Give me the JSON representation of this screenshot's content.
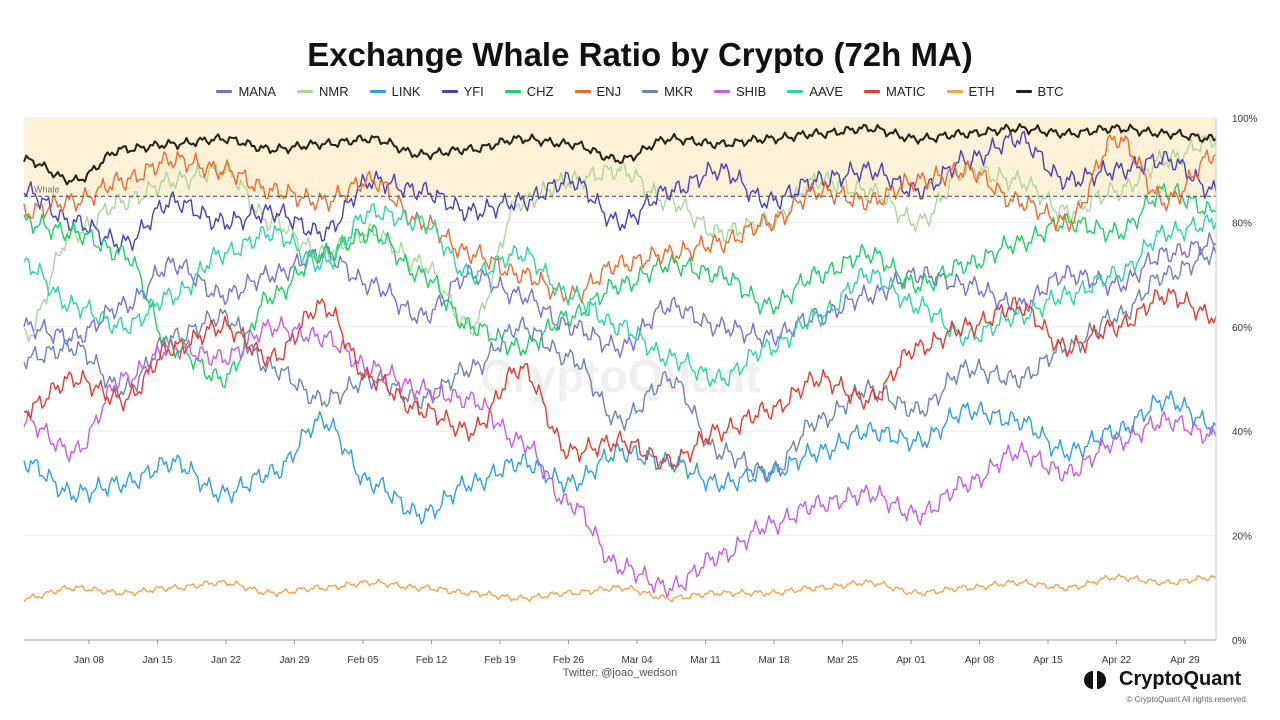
{
  "title": "Exchange Whale Ratio by Crypto (72h MA)",
  "watermark": "CryptoQuant",
  "threshold_label": "Whale",
  "credit": "Twitter: @joao_wedson",
  "brand": "CryptoQuant",
  "copyright": "© CryptoQuant All rights reserved.",
  "colors": {
    "band": "#fdf1d8",
    "grid": "#eeeeee",
    "threshold": "#555555"
  },
  "chart_data": {
    "type": "line",
    "title": "Exchange Whale Ratio by Crypto (72h MA)",
    "x_start": "Jan 02",
    "x_end": "May 03",
    "x_ticks": [
      "Jan 08",
      "Jan 15",
      "Jan 22",
      "Jan 29",
      "Feb 05",
      "Feb 12",
      "Feb 19",
      "Feb 26",
      "Mar 04",
      "Mar 11",
      "Mar 18",
      "Mar 25",
      "Apr 01",
      "Apr 08",
      "Apr 15",
      "Apr 22",
      "Apr 29"
    ],
    "y_ticks": [
      "0%",
      "20%",
      "40%",
      "60%",
      "80%",
      "100%"
    ],
    "ylim": [
      0,
      100
    ],
    "y_axis_position": "right",
    "highlight_band": [
      85,
      100
    ],
    "threshold": 85,
    "legend_position": "top-center",
    "grid": true,
    "series": [
      {
        "name": "MANA",
        "color": "#7b6fd4",
        "values": [
          60,
          58,
          64,
          72,
          66,
          70,
          74,
          68,
          62,
          70,
          66,
          60,
          56,
          64,
          60,
          58,
          62,
          66,
          70,
          68,
          64,
          70,
          68,
          74,
          76
        ]
      },
      {
        "name": "NMR",
        "color": "#a8d89a",
        "values": [
          58,
          78,
          84,
          88,
          90,
          80,
          74,
          78,
          72,
          60,
          84,
          88,
          90,
          84,
          78,
          80,
          88,
          86,
          80,
          90,
          88,
          82,
          86,
          92,
          96
        ]
      },
      {
        "name": "LINK",
        "color": "#2f9fe3",
        "values": [
          34,
          28,
          30,
          34,
          28,
          32,
          42,
          30,
          24,
          30,
          34,
          30,
          36,
          34,
          30,
          32,
          36,
          40,
          38,
          44,
          42,
          36,
          40,
          46,
          41
        ]
      },
      {
        "name": "YFI",
        "color": "#4a3fb8",
        "values": [
          86,
          80,
          76,
          84,
          80,
          82,
          78,
          88,
          86,
          82,
          84,
          88,
          80,
          86,
          90,
          84,
          88,
          90,
          86,
          92,
          96,
          88,
          90,
          92,
          86
        ]
      },
      {
        "name": "CHZ",
        "color": "#1ccf66",
        "values": [
          80,
          78,
          74,
          56,
          50,
          66,
          74,
          78,
          70,
          60,
          56,
          62,
          68,
          72,
          70,
          64,
          70,
          74,
          68,
          72,
          76,
          80,
          78,
          86,
          82
        ]
      },
      {
        "name": "ENJ",
        "color": "#f06a2a",
        "values": [
          82,
          84,
          88,
          92,
          90,
          86,
          84,
          88,
          80,
          74,
          70,
          66,
          72,
          74,
          76,
          80,
          86,
          84,
          88,
          90,
          84,
          80,
          96,
          84,
          93
        ]
      },
      {
        "name": "MKR",
        "color": "#6a85b5",
        "values": [
          54,
          56,
          48,
          58,
          62,
          52,
          46,
          50,
          46,
          52,
          60,
          54,
          42,
          50,
          36,
          32,
          42,
          48,
          44,
          52,
          50,
          56,
          62,
          70,
          74
        ]
      },
      {
        "name": "SHIB",
        "color": "#c55de8",
        "values": [
          42,
          36,
          50,
          56,
          54,
          60,
          58,
          52,
          48,
          46,
          38,
          26,
          14,
          10,
          16,
          22,
          26,
          28,
          24,
          30,
          36,
          32,
          38,
          42,
          39
        ]
      },
      {
        "name": "AAVE",
        "color": "#2ed4a8",
        "values": [
          72,
          64,
          60,
          66,
          74,
          78,
          72,
          82,
          80,
          70,
          74,
          66,
          60,
          54,
          50,
          56,
          62,
          70,
          64,
          58,
          62,
          66,
          70,
          78,
          80
        ]
      },
      {
        "name": "MATIC",
        "color": "#e53a2f",
        "values": [
          44,
          50,
          46,
          56,
          60,
          54,
          64,
          50,
          44,
          40,
          52,
          36,
          38,
          34,
          40,
          44,
          50,
          46,
          56,
          60,
          64,
          56,
          60,
          66,
          62
        ]
      },
      {
        "name": "ETH",
        "color": "#f4a34a",
        "values": [
          8,
          10,
          9,
          10,
          11,
          9,
          10,
          11,
          10,
          9,
          8,
          9,
          10,
          8,
          9,
          9,
          10,
          11,
          9,
          10,
          11,
          10,
          12,
          11,
          12
        ]
      },
      {
        "name": "BTC",
        "color": "#2b1d12",
        "values": [
          92,
          88,
          94,
          95,
          96,
          94,
          95,
          96,
          93,
          94,
          96,
          95,
          92,
          96,
          95,
          96,
          97,
          98,
          96,
          97,
          98,
          97,
          98,
          97,
          96
        ]
      }
    ]
  }
}
